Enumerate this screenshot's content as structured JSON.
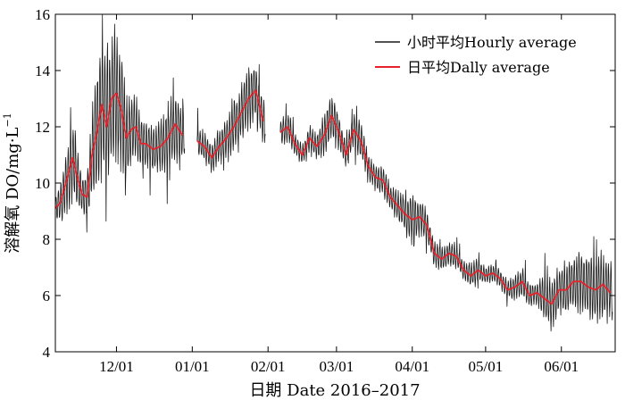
{
  "chart_data": {
    "type": "line",
    "title": "",
    "xlabel": "日期 Date 2016–2017",
    "ylabel": "溶解氧 DO/mg·L",
    "ylabel_superscript": "−1",
    "ylim": [
      4,
      16
    ],
    "yticks": [
      "4",
      "6",
      "8",
      "10",
      "12",
      "14",
      "16"
    ],
    "xlim": [
      "2016-11-06",
      "2017-06-23"
    ],
    "xticks": [
      {
        "date": "2016-12-01",
        "label": "12/01"
      },
      {
        "date": "2017-01-01",
        "label": "01/01"
      },
      {
        "date": "2017-02-01",
        "label": "02/01"
      },
      {
        "date": "2017-03-01",
        "label": "03/01"
      },
      {
        "date": "2017-04-01",
        "label": "04/01"
      },
      {
        "date": "2017-05-01",
        "label": "05/01"
      },
      {
        "date": "2017-06-01",
        "label": "06/01"
      }
    ],
    "grid": false,
    "legend_position": "top-right",
    "series": [
      {
        "name": "小时平均Hourly average",
        "color": "#1a1a1a",
        "x": [
          "2016-11-06",
          "2016-11-08",
          "2016-11-10",
          "2016-11-13",
          "2016-11-15",
          "2016-11-17",
          "2016-11-19",
          "2016-11-21",
          "2016-11-23",
          "2016-11-25",
          "2016-11-27",
          "2016-11-29",
          "2016-12-01",
          "2016-12-03",
          "2016-12-05",
          "2016-12-07",
          "2016-12-09",
          "2016-12-11",
          "2016-12-13",
          "2016-12-16",
          "2016-12-19",
          "2016-12-22",
          "2016-12-25",
          "2016-12-28",
          "2016-12-31",
          "2017-01-03",
          "2017-01-06",
          "2017-01-09",
          "2017-01-12",
          "2017-01-15",
          "2017-01-18",
          "2017-01-21",
          "2017-01-24",
          "2017-01-27",
          "2017-01-30",
          "2017-02-03",
          "2017-02-06",
          "2017-02-09",
          "2017-02-12",
          "2017-02-15",
          "2017-02-18",
          "2017-02-21",
          "2017-02-24",
          "2017-02-27",
          "2017-03-02",
          "2017-03-05",
          "2017-03-08",
          "2017-03-11",
          "2017-03-14",
          "2017-03-17",
          "2017-03-20",
          "2017-03-23",
          "2017-03-26",
          "2017-03-29",
          "2017-04-01",
          "2017-04-04",
          "2017-04-07",
          "2017-04-10",
          "2017-04-13",
          "2017-04-16",
          "2017-04-19",
          "2017-04-22",
          "2017-04-25",
          "2017-04-28",
          "2017-05-01",
          "2017-05-04",
          "2017-05-07",
          "2017-05-10",
          "2017-05-13",
          "2017-05-16",
          "2017-05-19",
          "2017-05-22",
          "2017-05-25",
          "2017-05-28",
          "2017-05-31",
          "2017-06-03",
          "2017-06-06",
          "2017-06-09",
          "2017-06-12",
          "2017-06-15",
          "2017-06-18",
          "2017-06-21"
        ],
        "y": [
          9.1,
          9.3,
          9.9,
          10.9,
          10.2,
          9.6,
          9.5,
          11.0,
          11.8,
          12.8,
          12.0,
          13.0,
          13.2,
          12.6,
          11.6,
          11.9,
          12.0,
          11.4,
          11.4,
          11.2,
          11.3,
          11.6,
          12.1,
          11.7,
          null,
          11.5,
          11.3,
          10.9,
          11.3,
          11.6,
          12.0,
          12.5,
          13.0,
          13.3,
          12.2,
          null,
          11.8,
          12.0,
          11.4,
          11.0,
          11.6,
          11.3,
          11.7,
          12.4,
          11.8,
          11.0,
          11.9,
          11.5,
          10.6,
          10.2,
          10.1,
          9.5,
          9.2,
          8.9,
          8.7,
          8.8,
          8.5,
          7.5,
          7.3,
          7.5,
          7.4,
          6.9,
          6.7,
          6.9,
          6.7,
          6.8,
          6.6,
          6.2,
          6.3,
          6.5,
          6.0,
          6.1,
          5.9,
          5.7,
          6.2,
          6.2,
          6.5,
          6.5,
          6.3,
          6.2,
          6.4,
          6.1
        ],
        "amplitude": [
          0.4,
          0.6,
          1.0,
          1.4,
          1.0,
          0.7,
          0.8,
          1.6,
          2.0,
          2.4,
          2.2,
          2.2,
          2.4,
          2.0,
          1.4,
          1.2,
          1.0,
          0.9,
          0.8,
          0.8,
          0.9,
          1.0,
          1.2,
          0.9,
          0,
          0.5,
          0.5,
          0.5,
          0.5,
          0.6,
          0.8,
          0.9,
          1.0,
          0.9,
          0.7,
          0,
          0.4,
          0.5,
          0.4,
          0.3,
          0.4,
          0.4,
          0.7,
          0.8,
          0.6,
          0.4,
          0.6,
          0.6,
          0.4,
          0.4,
          0.5,
          0.4,
          0.5,
          0.6,
          0.9,
          0.6,
          0.5,
          0.4,
          0.4,
          0.4,
          0.4,
          0.3,
          0.4,
          0.4,
          0.3,
          0.3,
          0.3,
          0.3,
          0.4,
          0.5,
          0.4,
          0.4,
          0.7,
          0.9,
          0.8,
          0.9,
          0.9,
          1.0,
          1.0,
          1.1,
          1.1,
          1.0
        ]
      },
      {
        "name": "日平均Dally average",
        "color": "#e8212b",
        "x": [
          "2016-11-06",
          "2016-11-08",
          "2016-11-10",
          "2016-11-13",
          "2016-11-15",
          "2016-11-17",
          "2016-11-19",
          "2016-11-21",
          "2016-11-23",
          "2016-11-25",
          "2016-11-27",
          "2016-11-29",
          "2016-12-01",
          "2016-12-03",
          "2016-12-05",
          "2016-12-07",
          "2016-12-09",
          "2016-12-11",
          "2016-12-13",
          "2016-12-16",
          "2016-12-19",
          "2016-12-22",
          "2016-12-25",
          "2016-12-28",
          "2016-12-31",
          "2017-01-03",
          "2017-01-06",
          "2017-01-09",
          "2017-01-12",
          "2017-01-15",
          "2017-01-18",
          "2017-01-21",
          "2017-01-24",
          "2017-01-27",
          "2017-01-30",
          "2017-02-03",
          "2017-02-06",
          "2017-02-09",
          "2017-02-12",
          "2017-02-15",
          "2017-02-18",
          "2017-02-21",
          "2017-02-24",
          "2017-02-27",
          "2017-03-02",
          "2017-03-05",
          "2017-03-08",
          "2017-03-11",
          "2017-03-14",
          "2017-03-17",
          "2017-03-20",
          "2017-03-23",
          "2017-03-26",
          "2017-03-29",
          "2017-04-01",
          "2017-04-04",
          "2017-04-07",
          "2017-04-10",
          "2017-04-13",
          "2017-04-16",
          "2017-04-19",
          "2017-04-22",
          "2017-04-25",
          "2017-04-28",
          "2017-05-01",
          "2017-05-04",
          "2017-05-07",
          "2017-05-10",
          "2017-05-13",
          "2017-05-16",
          "2017-05-19",
          "2017-05-22",
          "2017-05-25",
          "2017-05-28",
          "2017-05-31",
          "2017-06-03",
          "2017-06-06",
          "2017-06-09",
          "2017-06-12",
          "2017-06-15",
          "2017-06-18",
          "2017-06-21"
        ],
        "y": [
          9.1,
          9.3,
          9.9,
          10.9,
          10.2,
          9.6,
          9.5,
          11.0,
          11.8,
          12.8,
          12.0,
          13.0,
          13.2,
          12.6,
          11.6,
          11.9,
          12.0,
          11.4,
          11.4,
          11.2,
          11.3,
          11.6,
          12.1,
          11.7,
          null,
          11.5,
          11.3,
          10.9,
          11.3,
          11.6,
          12.0,
          12.5,
          13.0,
          13.3,
          12.2,
          null,
          11.8,
          12.0,
          11.4,
          11.0,
          11.6,
          11.3,
          11.7,
          12.4,
          11.8,
          11.0,
          11.9,
          11.5,
          10.6,
          10.2,
          10.1,
          9.5,
          9.2,
          8.9,
          8.7,
          8.8,
          8.5,
          7.5,
          7.3,
          7.5,
          7.4,
          6.9,
          6.7,
          6.9,
          6.7,
          6.8,
          6.6,
          6.2,
          6.3,
          6.5,
          6.0,
          6.1,
          5.9,
          5.7,
          6.2,
          6.2,
          6.5,
          6.5,
          6.3,
          6.2,
          6.4,
          6.1
        ]
      }
    ]
  }
}
